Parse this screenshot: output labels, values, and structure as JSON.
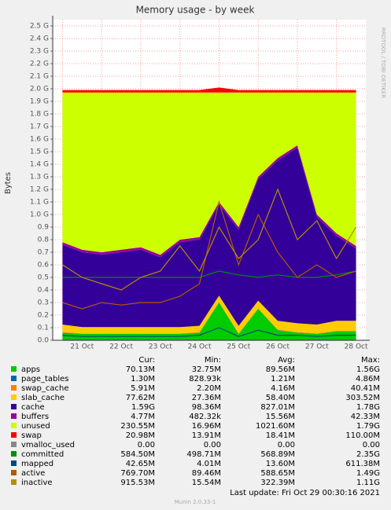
{
  "chart_data": {
    "type": "area",
    "title": "Memory usage - by week",
    "y_label": "Bytes",
    "side_text": "RRDTOOL / TOBI OETIKER",
    "categories": [
      null,
      "21 Oct",
      null,
      "22 Oct",
      null,
      "23 Oct",
      null,
      "24 Oct",
      null,
      "25 Oct",
      null,
      "26 Oct",
      null,
      "27 Oct",
      null,
      "28 Oct"
    ],
    "ylim": [
      0,
      2.5
    ],
    "yticks": [
      {
        "value": 0,
        "label": "0.0"
      },
      0.1,
      0.2,
      0.3,
      0.4,
      0.5,
      0.6,
      0.7,
      0.8,
      0.9,
      {
        "value": 1.0,
        "label": "1.0 G"
      },
      {
        "value": 1.1,
        "label": "1.1 G"
      },
      {
        "value": 1.2,
        "label": "1.2 G"
      },
      {
        "value": 1.3,
        "label": "1.3 G"
      },
      {
        "value": 1.4,
        "label": "1.4 G"
      },
      {
        "value": 1.5,
        "label": "1.5 G"
      },
      {
        "value": 1.6,
        "label": "1.6 G"
      },
      {
        "value": 1.7,
        "label": "1.7 G"
      },
      {
        "value": 1.8,
        "label": "1.8 G"
      },
      {
        "value": 1.9,
        "label": "1.9 G"
      },
      {
        "value": 2.0,
        "label": "2.0 G"
      },
      {
        "value": 2.1,
        "label": "2.1 G"
      },
      {
        "value": 2.2,
        "label": "2.2 G"
      },
      {
        "value": 2.3,
        "label": "2.3 G"
      },
      {
        "value": 2.4,
        "label": "2.4 G"
      },
      {
        "value": 2.5,
        "label": "2.5 G"
      }
    ],
    "grid": true,
    "stat_headers": [
      "Cur:",
      "Min:",
      "Avg:",
      "Max:"
    ],
    "series": [
      {
        "name": "apps",
        "color": "#00cc00",
        "style": "stack",
        "stats": [
          "70.13M",
          "32.75M",
          "89.56M",
          "1.56G"
        ],
        "values": [
          0.06,
          0.05,
          0.05,
          0.05,
          0.05,
          0.05,
          0.05,
          0.06,
          0.3,
          0.05,
          0.25,
          0.08,
          0.06,
          0.05,
          0.07,
          0.07
        ]
      },
      {
        "name": "page_tables",
        "color": "#0066b3",
        "style": "stack",
        "stats": [
          "1.30M",
          "828.93k",
          "1.21M",
          "4.86M"
        ],
        "values": [
          0.001,
          0.001,
          0.001,
          0.001,
          0.001,
          0.001,
          0.001,
          0.001,
          0.001,
          0.001,
          0.001,
          0.001,
          0.001,
          0.001,
          0.001,
          0.001
        ]
      },
      {
        "name": "swap_cache",
        "color": "#ff8000",
        "style": "stack",
        "stats": [
          "5.91M",
          "2.20M",
          "4.16M",
          "40.41M"
        ],
        "values": [
          0.004,
          0.004,
          0.004,
          0.004,
          0.004,
          0.004,
          0.004,
          0.004,
          0.004,
          0.004,
          0.004,
          0.004,
          0.004,
          0.004,
          0.004,
          0.004
        ]
      },
      {
        "name": "slab_cache",
        "color": "#ffcc00",
        "style": "stack",
        "stats": [
          "77.62M",
          "27.36M",
          "58.40M",
          "303.52M"
        ],
        "values": [
          0.06,
          0.05,
          0.05,
          0.05,
          0.05,
          0.05,
          0.05,
          0.05,
          0.05,
          0.06,
          0.06,
          0.07,
          0.07,
          0.07,
          0.08,
          0.08
        ]
      },
      {
        "name": "cache",
        "color": "#330099",
        "style": "stack",
        "stats": [
          "1.59G",
          "98.36M",
          "827.01M",
          "1.78G"
        ],
        "values": [
          0.635,
          0.595,
          0.575,
          0.595,
          0.615,
          0.555,
          0.675,
          0.685,
          0.725,
          0.765,
          0.965,
          1.275,
          1.395,
          0.855,
          0.675,
          0.575
        ]
      },
      {
        "name": "buffers",
        "color": "#990099",
        "style": "stack",
        "stats": [
          "4.77M",
          "482.32k",
          "15.56M",
          "42.33M"
        ],
        "values": [
          0.02,
          0.02,
          0.02,
          0.02,
          0.02,
          0.02,
          0.02,
          0.02,
          0.02,
          0.02,
          0.02,
          0.02,
          0.02,
          0.02,
          0.02,
          0.02
        ]
      },
      {
        "name": "unused",
        "color": "#ccff00",
        "style": "stack",
        "stats": [
          "230.55M",
          "16.96M",
          "1021.60M",
          "1.79G"
        ],
        "values": [
          1.19,
          1.25,
          1.27,
          1.25,
          1.23,
          1.29,
          1.17,
          1.15,
          0.87,
          1.07,
          0.67,
          0.52,
          0.42,
          0.97,
          1.12,
          1.22
        ]
      },
      {
        "name": "swap",
        "color": "#ff0000",
        "style": "stack",
        "stats": [
          "20.98M",
          "13.91M",
          "18.41M",
          "110.00M"
        ],
        "values": [
          0.02,
          0.02,
          0.02,
          0.02,
          0.02,
          0.02,
          0.02,
          0.02,
          0.04,
          0.02,
          0.02,
          0.02,
          0.02,
          0.02,
          0.02,
          0.02
        ]
      },
      {
        "name": "vmalloc_used",
        "color": "#888888",
        "style": "line",
        "stats": [
          "0.00",
          "0.00",
          "0.00",
          "0.00"
        ],
        "values": [
          0,
          0,
          0,
          0,
          0,
          0,
          0,
          0,
          0,
          0,
          0,
          0,
          0,
          0,
          0,
          0
        ]
      },
      {
        "name": "committed",
        "color": "#008f00",
        "style": "line",
        "stats": [
          "584.50M",
          "498.71M",
          "568.89M",
          "2.35G"
        ],
        "values": [
          0.5,
          0.5,
          0.5,
          0.5,
          0.5,
          0.5,
          0.5,
          0.5,
          0.55,
          0.52,
          0.5,
          0.52,
          0.5,
          0.5,
          0.52,
          0.55
        ]
      },
      {
        "name": "mapped",
        "color": "#00487d",
        "style": "line",
        "stats": [
          "42.65M",
          "4.01M",
          "13.60M",
          "611.38M"
        ],
        "values": [
          0.04,
          0.03,
          0.03,
          0.03,
          0.03,
          0.03,
          0.03,
          0.04,
          0.1,
          0.03,
          0.08,
          0.04,
          0.04,
          0.03,
          0.04,
          0.04
        ]
      },
      {
        "name": "active",
        "color": "#b35a00",
        "style": "line",
        "stats": [
          "769.70M",
          "89.46M",
          "588.65M",
          "1.49G"
        ],
        "values": [
          0.3,
          0.25,
          0.3,
          0.28,
          0.3,
          0.3,
          0.35,
          0.45,
          1.1,
          0.6,
          1.0,
          0.7,
          0.5,
          0.6,
          0.5,
          0.55
        ]
      },
      {
        "name": "inactive",
        "color": "#b38f00",
        "style": "line",
        "stats": [
          "915.53M",
          "15.54M",
          "322.39M",
          "1.11G"
        ],
        "values": [
          0.6,
          0.5,
          0.45,
          0.4,
          0.5,
          0.55,
          0.75,
          0.55,
          0.9,
          0.65,
          0.8,
          1.2,
          0.8,
          0.95,
          0.65,
          0.9
        ]
      }
    ],
    "last_update": "Last update:  Fri Oct 29 00:30:16 2021",
    "footer": "Munin 2.0.33-1"
  }
}
